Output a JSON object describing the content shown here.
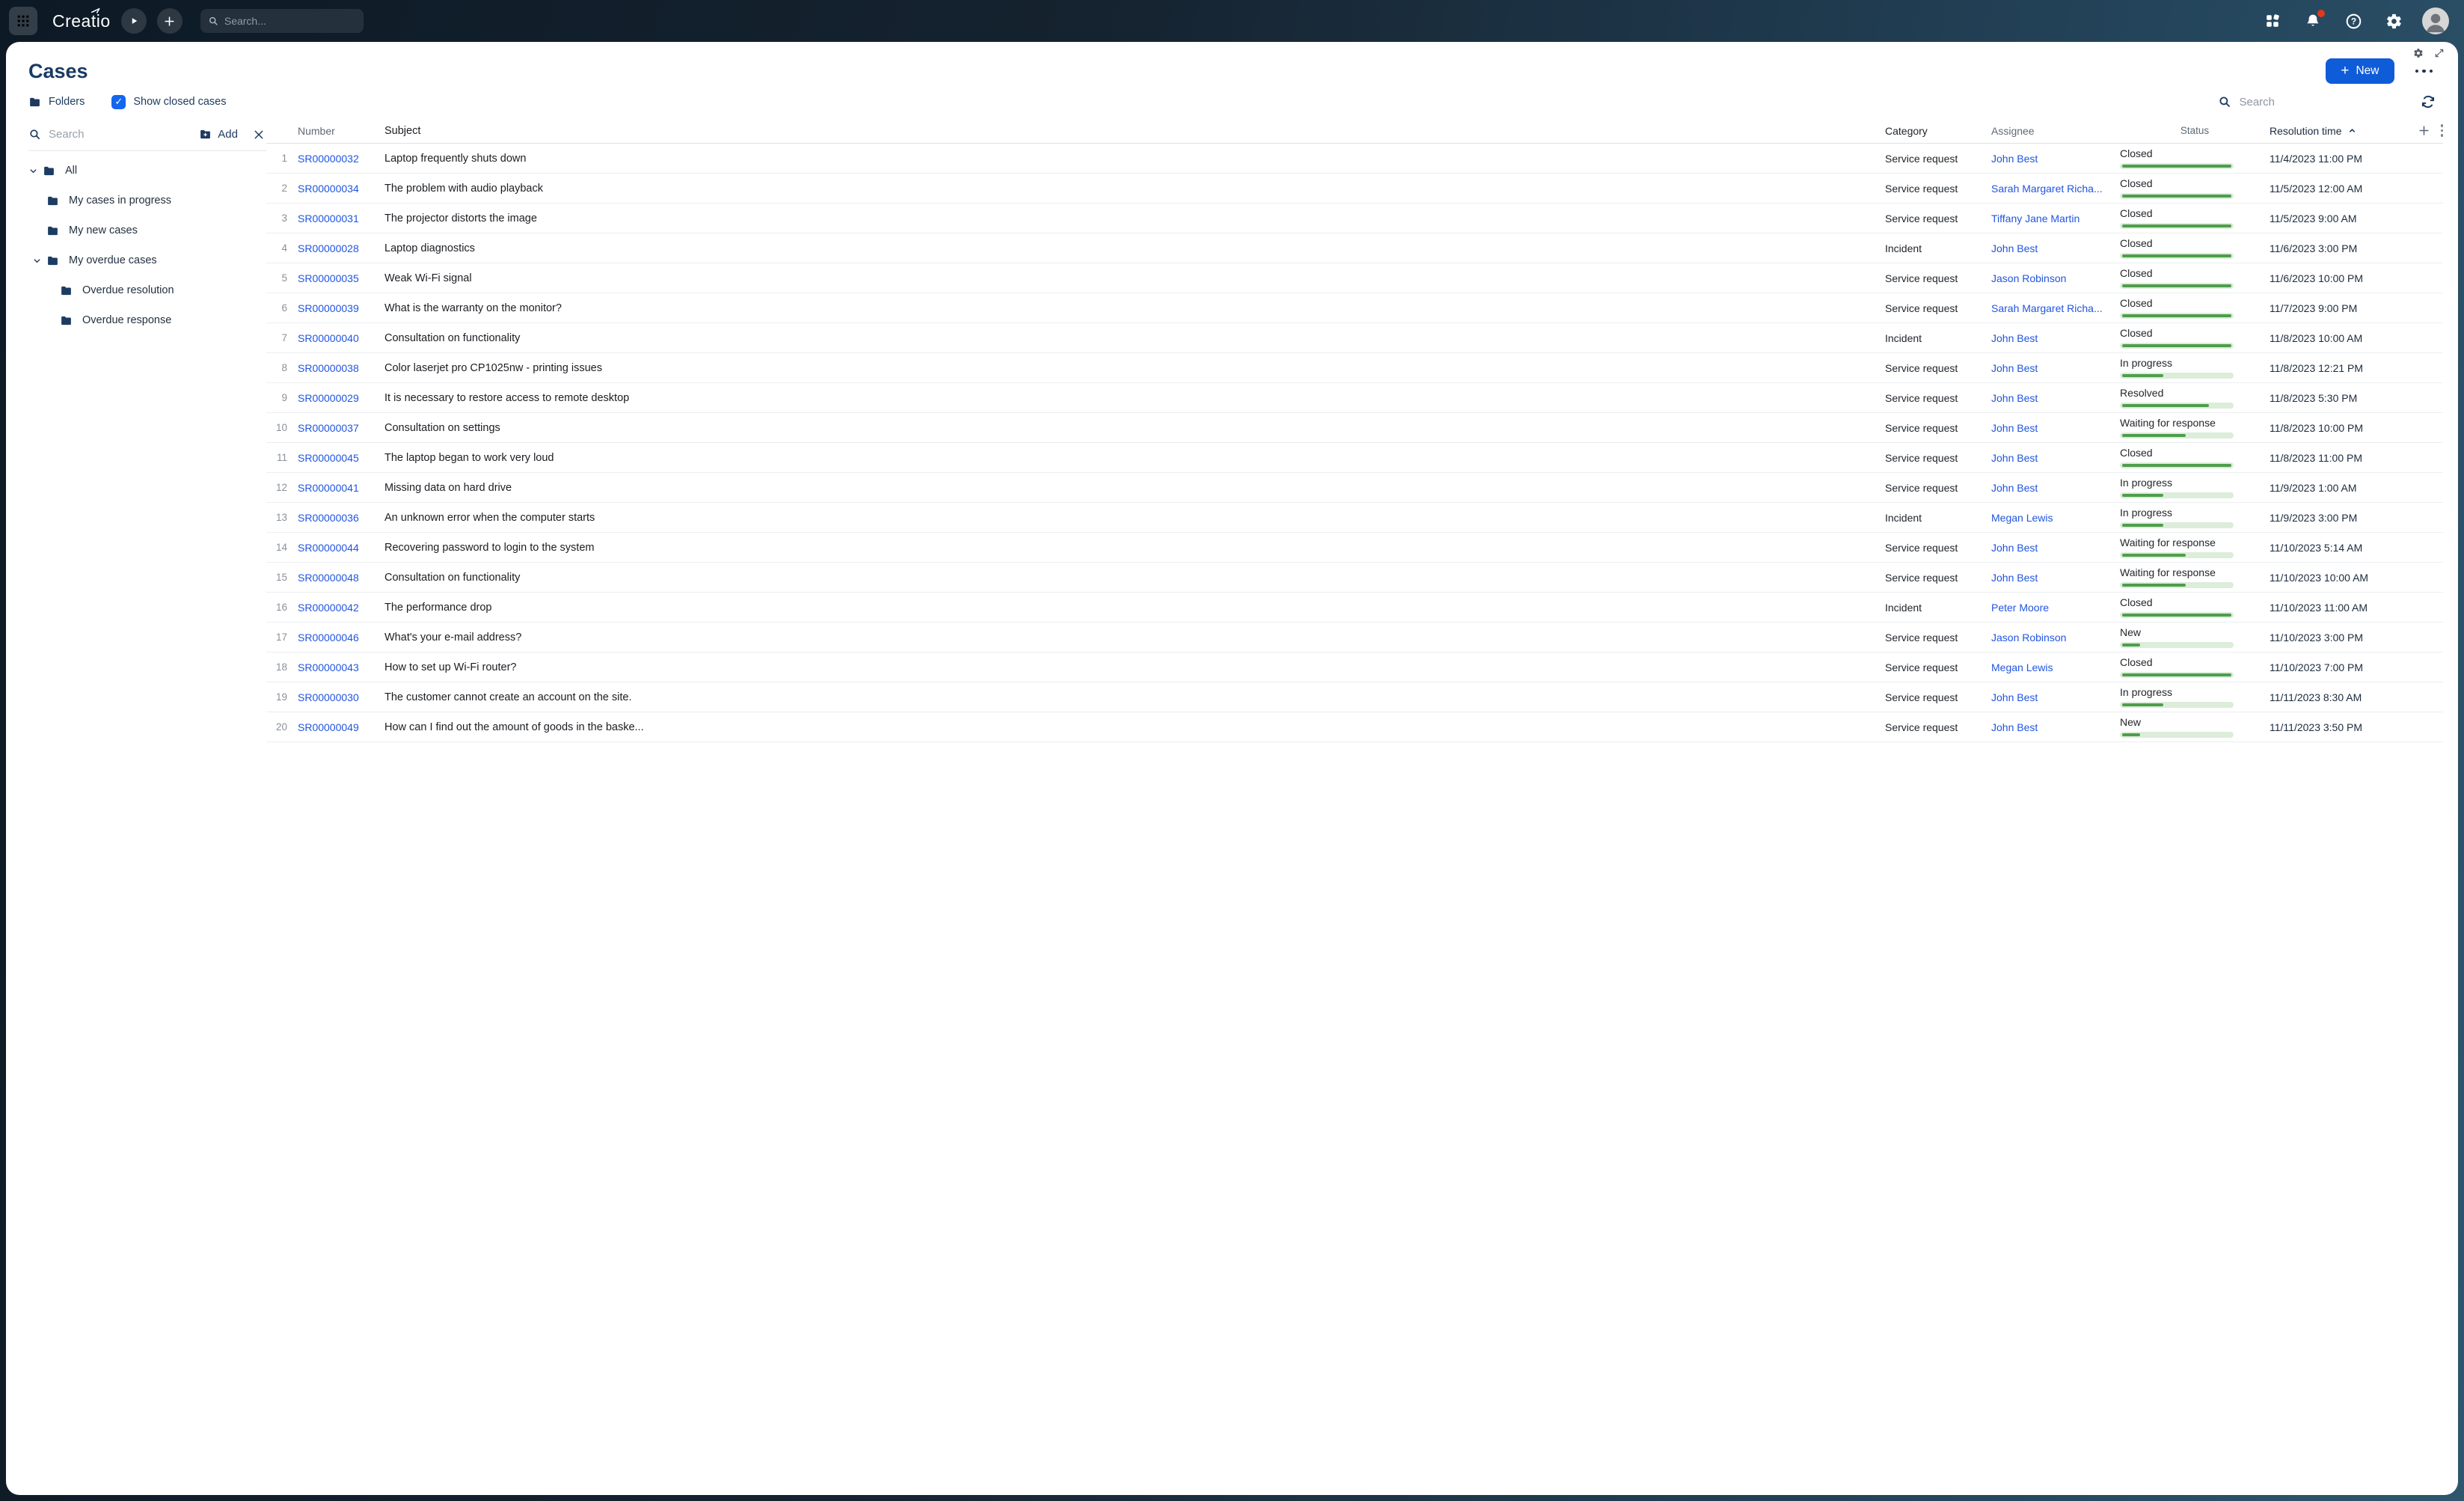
{
  "topbar": {
    "logo": "Creatio",
    "search_placeholder": "Search..."
  },
  "page": {
    "title": "Cases",
    "new_button_label": "New",
    "new_button_plus": "+",
    "folders_button": "Folders",
    "show_closed_label": "Show closed cases",
    "show_closed_checked": true,
    "checkbox_glyph": "✓",
    "grid_search_placeholder": "Search"
  },
  "sidebar": {
    "search_placeholder": "Search",
    "add_label": "Add",
    "tree": [
      {
        "label": "All",
        "level": 0,
        "expanded": true
      },
      {
        "label": "My cases in progress",
        "level": 1,
        "expanded": false
      },
      {
        "label": "My new cases",
        "level": 1,
        "expanded": false
      },
      {
        "label": "My overdue cases",
        "level": 1,
        "expanded": true
      },
      {
        "label": "Overdue resolution",
        "level": 2,
        "expanded": false
      },
      {
        "label": "Overdue response",
        "level": 2,
        "expanded": false
      }
    ]
  },
  "table": {
    "columns": [
      "Number",
      "Subject",
      "Category",
      "Assignee",
      "Status",
      "Resolution time"
    ],
    "sort_column": "Resolution time",
    "sort_direction": "asc",
    "rows": [
      {
        "index": 1,
        "number": "SR00000032",
        "subject": "Laptop frequently shuts down",
        "category": "Service request",
        "assignee": "John Best",
        "status": "Closed",
        "progress": 100,
        "resolution_time": "11/4/2023 11:00 PM"
      },
      {
        "index": 2,
        "number": "SR00000034",
        "subject": "The problem with audio playback",
        "category": "Service request",
        "assignee": "Sarah Margaret Richa...",
        "status": "Closed",
        "progress": 100,
        "resolution_time": "11/5/2023 12:00 AM"
      },
      {
        "index": 3,
        "number": "SR00000031",
        "subject": "The projector distorts the image",
        "category": "Service request",
        "assignee": "Tiffany Jane Martin",
        "status": "Closed",
        "progress": 100,
        "resolution_time": "11/5/2023 9:00 AM"
      },
      {
        "index": 4,
        "number": "SR00000028",
        "subject": "Laptop diagnostics",
        "category": "Incident",
        "assignee": "John Best",
        "status": "Closed",
        "progress": 100,
        "resolution_time": "11/6/2023 3:00 PM"
      },
      {
        "index": 5,
        "number": "SR00000035",
        "subject": "Weak Wi-Fi signal",
        "category": "Service request",
        "assignee": "Jason Robinson",
        "status": "Closed",
        "progress": 100,
        "resolution_time": "11/6/2023 10:00 PM"
      },
      {
        "index": 6,
        "number": "SR00000039",
        "subject": "What is the warranty on the monitor?",
        "category": "Service request",
        "assignee": "Sarah Margaret Richa...",
        "status": "Closed",
        "progress": 100,
        "resolution_time": "11/7/2023 9:00 PM"
      },
      {
        "index": 7,
        "number": "SR00000040",
        "subject": "Consultation on functionality",
        "category": "Incident",
        "assignee": "John Best",
        "status": "Closed",
        "progress": 100,
        "resolution_time": "11/8/2023 10:00 AM"
      },
      {
        "index": 8,
        "number": "SR00000038",
        "subject": "Color laserjet pro CP1025nw - printing issues",
        "category": "Service request",
        "assignee": "John Best",
        "status": "In progress",
        "progress": 40,
        "resolution_time": "11/8/2023 12:21 PM"
      },
      {
        "index": 9,
        "number": "SR00000029",
        "subject": "It is necessary to restore access to remote desktop",
        "category": "Service request",
        "assignee": "John Best",
        "status": "Resolved",
        "progress": 80,
        "resolution_time": "11/8/2023 5:30 PM"
      },
      {
        "index": 10,
        "number": "SR00000037",
        "subject": "Consultation on settings",
        "category": "Service request",
        "assignee": "John Best",
        "status": "Waiting for response",
        "progress": 60,
        "resolution_time": "11/8/2023 10:00 PM"
      },
      {
        "index": 11,
        "number": "SR00000045",
        "subject": "The laptop began to work very loud",
        "category": "Service request",
        "assignee": "John Best",
        "status": "Closed",
        "progress": 100,
        "resolution_time": "11/8/2023 11:00 PM"
      },
      {
        "index": 12,
        "number": "SR00000041",
        "subject": "Missing data on hard drive",
        "category": "Service request",
        "assignee": "John Best",
        "status": "In progress",
        "progress": 40,
        "resolution_time": "11/9/2023 1:00 AM"
      },
      {
        "index": 13,
        "number": "SR00000036",
        "subject": "An unknown error when the computer starts",
        "category": "Incident",
        "assignee": "Megan Lewis",
        "status": "In progress",
        "progress": 40,
        "resolution_time": "11/9/2023 3:00 PM"
      },
      {
        "index": 14,
        "number": "SR00000044",
        "subject": "Recovering password to login to the system",
        "category": "Service request",
        "assignee": "John Best",
        "status": "Waiting for response",
        "progress": 60,
        "resolution_time": "11/10/2023 5:14 AM"
      },
      {
        "index": 15,
        "number": "SR00000048",
        "subject": "Consultation on functionality",
        "category": "Service request",
        "assignee": "John Best",
        "status": "Waiting for response",
        "progress": 60,
        "resolution_time": "11/10/2023 10:00 AM"
      },
      {
        "index": 16,
        "number": "SR00000042",
        "subject": "The performance drop",
        "category": "Incident",
        "assignee": "Peter Moore",
        "status": "Closed",
        "progress": 100,
        "resolution_time": "11/10/2023 11:00 AM"
      },
      {
        "index": 17,
        "number": "SR00000046",
        "subject": "What's your e-mail address?",
        "category": "Service request",
        "assignee": "Jason Robinson",
        "status": "New",
        "progress": 20,
        "resolution_time": "11/10/2023 3:00 PM"
      },
      {
        "index": 18,
        "number": "SR00000043",
        "subject": "How to set up Wi-Fi router?",
        "category": "Service request",
        "assignee": "Megan Lewis",
        "status": "Closed",
        "progress": 100,
        "resolution_time": "11/10/2023 7:00 PM"
      },
      {
        "index": 19,
        "number": "SR00000030",
        "subject": "The customer cannot create an account on the site.",
        "category": "Service request",
        "assignee": "John Best",
        "status": "In progress",
        "progress": 40,
        "resolution_time": "11/11/2023 8:30 AM"
      },
      {
        "index": 20,
        "number": "SR00000049",
        "subject": "How can I find out the amount of goods in the baske...",
        "category": "Service request",
        "assignee": "John Best",
        "status": "New",
        "progress": 20,
        "resolution_time": "11/11/2023 3:50 PM"
      }
    ]
  },
  "colors": {
    "accent_blue": "#0f5cd9",
    "link_blue": "#2055e0",
    "checkbox_blue": "#1266ef",
    "navy": "#1d3a5e",
    "progress_green": "#4f9d4c",
    "progress_track": "#dcedda",
    "notification_red": "#e03a1b"
  },
  "icons": {
    "app-launcher": "grid-of-dots",
    "process-play": "play",
    "quick-add": "plus",
    "workplaces": "four-squares",
    "notifications": "bell",
    "help": "question-circle",
    "settings": "gear",
    "refresh": "circular-arrows",
    "sort-asc": "chevron-up"
  }
}
